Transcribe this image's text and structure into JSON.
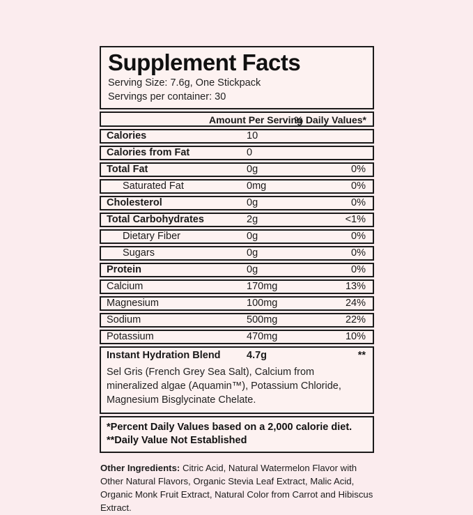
{
  "colors": {
    "page_background": "#fbecee",
    "panel_background": "#fdf2f1",
    "border": "#1a1a1a",
    "text": "#1a1a1a"
  },
  "label": {
    "title": "Supplement Facts",
    "serving_size": "Serving Size: 7.6g, One Stickpack",
    "servings_per_container": "Servings per container: 30",
    "columns": {
      "amount": "Amount Per Serving",
      "daily_value": "% Daily Values*"
    },
    "rows": [
      {
        "name": "Calories",
        "amount": "10",
        "dv": "",
        "bold": true,
        "indent": false
      },
      {
        "name": "Calories from Fat",
        "amount": "0",
        "dv": "",
        "bold": true,
        "indent": false
      },
      {
        "name": "Total Fat",
        "amount": "0g",
        "dv": "0%",
        "bold": true,
        "indent": false
      },
      {
        "name": "Saturated Fat",
        "amount": "0mg",
        "dv": "0%",
        "bold": false,
        "indent": true
      },
      {
        "name": "Cholesterol",
        "amount": "0g",
        "dv": "0%",
        "bold": true,
        "indent": false
      },
      {
        "name": "Total Carbohydrates",
        "amount": "2g",
        "dv": "<1%",
        "bold": true,
        "indent": false
      },
      {
        "name": "Dietary Fiber",
        "amount": "0g",
        "dv": "0%",
        "bold": false,
        "indent": true
      },
      {
        "name": "Sugars",
        "amount": "0g",
        "dv": "0%",
        "bold": false,
        "indent": true
      },
      {
        "name": "Protein",
        "amount": "0g",
        "dv": "0%",
        "bold": true,
        "indent": false
      },
      {
        "name": "Calcium",
        "amount": "170mg",
        "dv": "13%",
        "bold": false,
        "indent": false
      },
      {
        "name": "Magnesium",
        "amount": "100mg",
        "dv": "24%",
        "bold": false,
        "indent": false
      },
      {
        "name": "Sodium",
        "amount": "500mg",
        "dv": "22%",
        "bold": false,
        "indent": false
      },
      {
        "name": "Potassium",
        "amount": "470mg",
        "dv": "10%",
        "bold": false,
        "indent": false
      }
    ],
    "blend": {
      "name": "Instant Hydration Blend",
      "amount": "4.7g",
      "dv": "**",
      "description": "Sel Gris (French Grey Sea Salt), Calcium from mineralized algae (Aquamin™), Potassium Chloride, Magnesium Bisglycinate Chelate."
    },
    "footnotes": {
      "line1": "*Percent Daily Values based on a 2,000 calorie diet.",
      "line2": "**Daily Value Not Established"
    },
    "other_ingredients": {
      "label": "Other Ingredients:",
      "text": " Citric Acid, Natural Watermelon Flavor with Other Natural Flavors, Organic Stevia Leaf Extract, Malic Acid, Organic Monk Fruit Extract, Natural Color from Carrot and Hibiscus Extract."
    }
  }
}
